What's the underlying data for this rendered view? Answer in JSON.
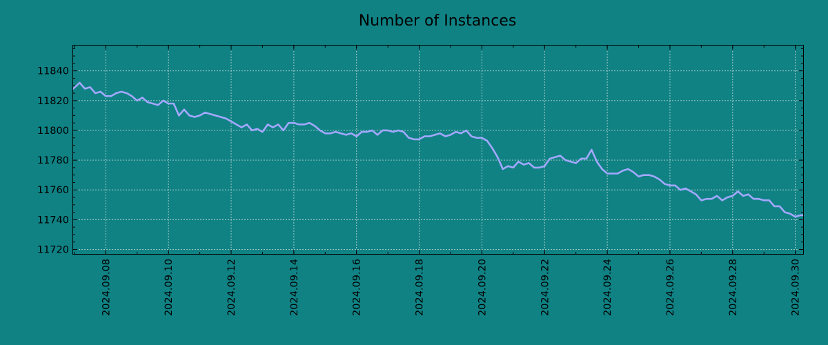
{
  "chart_data": {
    "type": "line",
    "title": "Number of Instances",
    "xlabel": "",
    "ylabel": "",
    "x_tick_labels": [
      "2024.09.08",
      "2024.09.10",
      "2024.09.12",
      "2024.09.14",
      "2024.09.16",
      "2024.09.18",
      "2024.09.20",
      "2024.09.22",
      "2024.09.24",
      "2024.09.26",
      "2024.09.28",
      "2024.09.30"
    ],
    "y_tick_labels": [
      "11720",
      "11740",
      "11760",
      "11780",
      "11800",
      "11820",
      "11840"
    ],
    "xlim": [
      "2024.09.06 23:00",
      "2024.09.30 06:00"
    ],
    "ylim": [
      11717,
      11857
    ],
    "grid": true,
    "background_color": "#108284",
    "line_color": "#a3a8ff",
    "series": [
      {
        "points": [
          [
            "2024.09.06 23:00",
            11828
          ],
          [
            "2024.09.07 04:00",
            11832
          ],
          [
            "2024.09.07 08:00",
            11828
          ],
          [
            "2024.09.07 12:00",
            11829
          ],
          [
            "2024.09.07 16:00",
            11825
          ],
          [
            "2024.09.07 20:00",
            11826
          ],
          [
            "2024.09.08 00:00",
            11823
          ],
          [
            "2024.09.08 04:00",
            11823
          ],
          [
            "2024.09.08 08:00",
            11825
          ],
          [
            "2024.09.08 12:00",
            11826
          ],
          [
            "2024.09.08 16:00",
            11825
          ],
          [
            "2024.09.08 20:00",
            11823
          ],
          [
            "2024.09.09 00:00",
            11820
          ],
          [
            "2024.09.09 04:00",
            11822
          ],
          [
            "2024.09.09 08:00",
            11819
          ],
          [
            "2024.09.09 12:00",
            11818
          ],
          [
            "2024.09.09 16:00",
            11817
          ],
          [
            "2024.09.09 20:00",
            11820
          ],
          [
            "2024.09.10 00:00",
            11818
          ],
          [
            "2024.09.10 04:00",
            11818
          ],
          [
            "2024.09.10 08:00",
            11810
          ],
          [
            "2024.09.10 12:00",
            11814
          ],
          [
            "2024.09.10 16:00",
            11810
          ],
          [
            "2024.09.10 20:00",
            11809
          ],
          [
            "2024.09.11 00:00",
            11810
          ],
          [
            "2024.09.11 04:00",
            11812
          ],
          [
            "2024.09.11 08:00",
            11811
          ],
          [
            "2024.09.11 12:00",
            11810
          ],
          [
            "2024.09.11 16:00",
            11809
          ],
          [
            "2024.09.11 20:00",
            11808
          ],
          [
            "2024.09.12 00:00",
            11806
          ],
          [
            "2024.09.12 04:00",
            11804
          ],
          [
            "2024.09.12 08:00",
            11802
          ],
          [
            "2024.09.12 12:00",
            11804
          ],
          [
            "2024.09.12 16:00",
            11800
          ],
          [
            "2024.09.12 20:00",
            11801
          ],
          [
            "2024.09.13 00:00",
            11799
          ],
          [
            "2024.09.13 04:00",
            11804
          ],
          [
            "2024.09.13 08:00",
            11802
          ],
          [
            "2024.09.13 12:00",
            11804
          ],
          [
            "2024.09.13 16:00",
            11800
          ],
          [
            "2024.09.13 20:00",
            11805
          ],
          [
            "2024.09.14 00:00",
            11805
          ],
          [
            "2024.09.14 04:00",
            11804
          ],
          [
            "2024.09.14 08:00",
            11804
          ],
          [
            "2024.09.14 12:00",
            11805
          ],
          [
            "2024.09.14 16:00",
            11803
          ],
          [
            "2024.09.14 20:00",
            11800
          ],
          [
            "2024.09.15 00:00",
            11798
          ],
          [
            "2024.09.15 04:00",
            11798
          ],
          [
            "2024.09.15 08:00",
            11799
          ],
          [
            "2024.09.15 12:00",
            11798
          ],
          [
            "2024.09.15 16:00",
            11797
          ],
          [
            "2024.09.15 20:00",
            11798
          ],
          [
            "2024.09.16 00:00",
            11796
          ],
          [
            "2024.09.16 04:00",
            11799
          ],
          [
            "2024.09.16 08:00",
            11799
          ],
          [
            "2024.09.16 12:00",
            11800
          ],
          [
            "2024.09.16 16:00",
            11797
          ],
          [
            "2024.09.16 20:00",
            11800
          ],
          [
            "2024.09.17 00:00",
            11800
          ],
          [
            "2024.09.17 04:00",
            11799
          ],
          [
            "2024.09.17 08:00",
            11800
          ],
          [
            "2024.09.17 12:00",
            11799
          ],
          [
            "2024.09.17 16:00",
            11795
          ],
          [
            "2024.09.17 20:00",
            11794
          ],
          [
            "2024.09.18 00:00",
            11794
          ],
          [
            "2024.09.18 04:00",
            11796
          ],
          [
            "2024.09.18 08:00",
            11796
          ],
          [
            "2024.09.18 12:00",
            11797
          ],
          [
            "2024.09.18 16:00",
            11798
          ],
          [
            "2024.09.18 20:00",
            11796
          ],
          [
            "2024.09.19 00:00",
            11797
          ],
          [
            "2024.09.19 04:00",
            11799
          ],
          [
            "2024.09.19 08:00",
            11798
          ],
          [
            "2024.09.19 12:00",
            11800
          ],
          [
            "2024.09.19 16:00",
            11796
          ],
          [
            "2024.09.19 20:00",
            11795
          ],
          [
            "2024.09.20 00:00",
            11795
          ],
          [
            "2024.09.20 04:00",
            11793
          ],
          [
            "2024.09.20 08:00",
            11788
          ],
          [
            "2024.09.20 12:00",
            11782
          ],
          [
            "2024.09.20 16:00",
            11774
          ],
          [
            "2024.09.20 20:00",
            11776
          ],
          [
            "2024.09.21 00:00",
            11775
          ],
          [
            "2024.09.21 04:00",
            11779
          ],
          [
            "2024.09.21 08:00",
            11777
          ],
          [
            "2024.09.21 12:00",
            11778
          ],
          [
            "2024.09.21 16:00",
            11775
          ],
          [
            "2024.09.21 20:00",
            11775
          ],
          [
            "2024.09.22 00:00",
            11776
          ],
          [
            "2024.09.22 04:00",
            11781
          ],
          [
            "2024.09.22 08:00",
            11782
          ],
          [
            "2024.09.22 12:00",
            11783
          ],
          [
            "2024.09.22 16:00",
            11780
          ],
          [
            "2024.09.22 20:00",
            11779
          ],
          [
            "2024.09.23 00:00",
            11778
          ],
          [
            "2024.09.23 04:00",
            11781
          ],
          [
            "2024.09.23 08:00",
            11781
          ],
          [
            "2024.09.23 12:00",
            11787
          ],
          [
            "2024.09.23 16:00",
            11779
          ],
          [
            "2024.09.23 20:00",
            11774
          ],
          [
            "2024.09.24 00:00",
            11771
          ],
          [
            "2024.09.24 04:00",
            11771
          ],
          [
            "2024.09.24 08:00",
            11771
          ],
          [
            "2024.09.24 12:00",
            11773
          ],
          [
            "2024.09.24 16:00",
            11774
          ],
          [
            "2024.09.24 20:00",
            11772
          ],
          [
            "2024.09.25 00:00",
            11769
          ],
          [
            "2024.09.25 04:00",
            11770
          ],
          [
            "2024.09.25 08:00",
            11770
          ],
          [
            "2024.09.25 12:00",
            11769
          ],
          [
            "2024.09.25 16:00",
            11767
          ],
          [
            "2024.09.25 20:00",
            11764
          ],
          [
            "2024.09.26 00:00",
            11763
          ],
          [
            "2024.09.26 04:00",
            11763
          ],
          [
            "2024.09.26 08:00",
            11760
          ],
          [
            "2024.09.26 12:00",
            11761
          ],
          [
            "2024.09.26 16:00",
            11759
          ],
          [
            "2024.09.26 20:00",
            11757
          ],
          [
            "2024.09.27 00:00",
            11753
          ],
          [
            "2024.09.27 04:00",
            11754
          ],
          [
            "2024.09.27 08:00",
            11754
          ],
          [
            "2024.09.27 12:00",
            11756
          ],
          [
            "2024.09.27 16:00",
            11753
          ],
          [
            "2024.09.27 20:00",
            11755
          ],
          [
            "2024.09.28 00:00",
            11756
          ],
          [
            "2024.09.28 04:00",
            11759
          ],
          [
            "2024.09.28 08:00",
            11756
          ],
          [
            "2024.09.28 12:00",
            11757
          ],
          [
            "2024.09.28 16:00",
            11754
          ],
          [
            "2024.09.28 20:00",
            11754
          ],
          [
            "2024.09.29 00:00",
            11753
          ],
          [
            "2024.09.29 04:00",
            11753
          ],
          [
            "2024.09.29 08:00",
            11749
          ],
          [
            "2024.09.29 12:00",
            11749
          ],
          [
            "2024.09.29 16:00",
            11745
          ],
          [
            "2024.09.29 20:00",
            11744
          ],
          [
            "2024.09.30 00:00",
            11742
          ],
          [
            "2024.09.30 04:00",
            11743
          ],
          [
            "2024.09.30 06:00",
            11743
          ]
        ]
      }
    ]
  }
}
